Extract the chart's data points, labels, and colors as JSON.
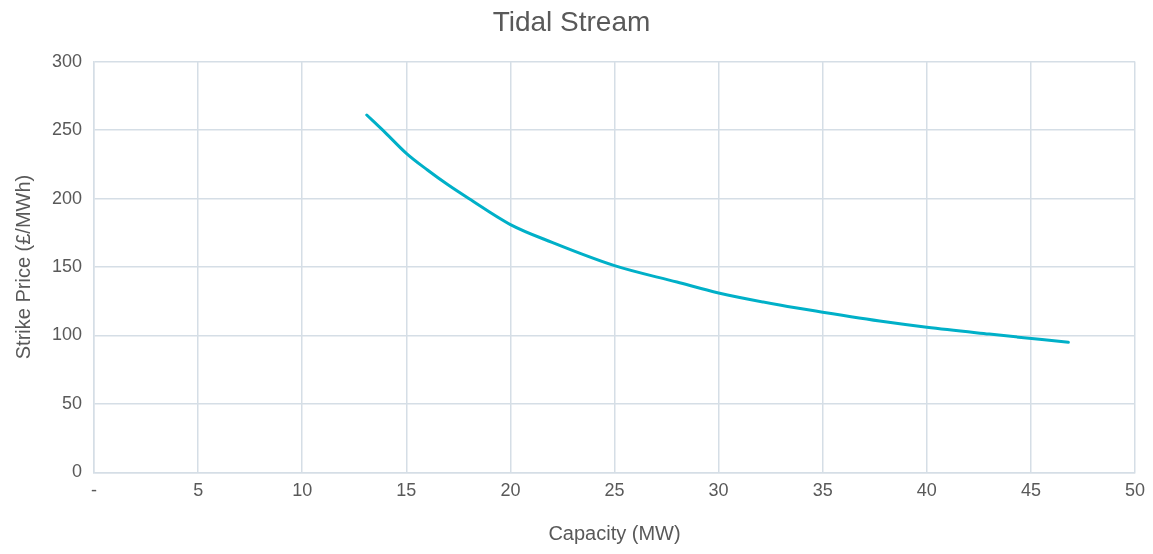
{
  "chart_data": {
    "type": "line",
    "title": "Tidal Stream",
    "xlabel": "Capacity (MW)",
    "ylabel": "Strike Price (£/MWh)",
    "x": [
      13.1,
      14,
      15,
      16,
      17,
      18,
      20,
      22,
      25,
      28,
      30,
      33,
      35,
      38,
      40,
      43,
      46.8
    ],
    "series": [
      {
        "color": "#00b0c8",
        "values": [
          261,
          248,
          233,
          221,
          210,
          200,
          181,
          168,
          151,
          139,
          131,
          122,
          117,
          110,
          106,
          101,
          95
        ]
      }
    ],
    "xlim": [
      0,
      50
    ],
    "xticks": [
      {
        "value": 0,
        "label": "-"
      },
      5,
      10,
      15,
      20,
      25,
      30,
      35,
      40,
      45,
      50
    ],
    "ylim": [
      0,
      300
    ],
    "yticks": [
      0,
      50,
      100,
      150,
      200,
      250,
      300
    ],
    "grid": true,
    "legend": false,
    "marker": "none",
    "line_style": "solid"
  }
}
